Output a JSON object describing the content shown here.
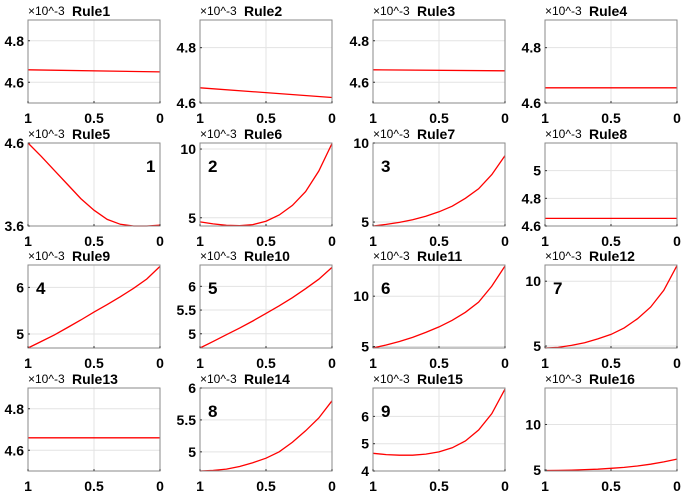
{
  "chart_data": [
    {
      "type": "line",
      "title": "Rule1",
      "exponent_label": "×10^-3",
      "xlim": [
        1,
        0
      ],
      "xticks": [
        1,
        0.5,
        0
      ],
      "xtick_labels": [
        "1",
        "0.5",
        "0"
      ],
      "ylim": [
        4.5,
        4.9
      ],
      "yticks": [
        4.6,
        4.8
      ],
      "ytick_labels": [
        "4.6",
        "4.8"
      ],
      "x": [
        1,
        0
      ],
      "y": [
        4.66,
        4.65
      ],
      "grid": true,
      "color": "#ff0000"
    },
    {
      "type": "line",
      "title": "Rule2",
      "exponent_label": "×10^-3",
      "xlim": [
        1,
        0
      ],
      "xticks": [
        1,
        0.5,
        0
      ],
      "xtick_labels": [
        "1",
        "0.5",
        "0"
      ],
      "ylim": [
        4.6,
        4.9
      ],
      "yticks": [
        4.6,
        4.8
      ],
      "ytick_labels": [
        "4.6",
        "4.8"
      ],
      "x": [
        1,
        0
      ],
      "y": [
        4.655,
        4.62
      ],
      "grid": true,
      "color": "#ff0000"
    },
    {
      "type": "line",
      "title": "Rule3",
      "exponent_label": "×10^-3",
      "xlim": [
        1,
        0
      ],
      "xticks": [
        1,
        0.5,
        0
      ],
      "xtick_labels": [
        "1",
        "0.5",
        "0"
      ],
      "ylim": [
        4.5,
        4.9
      ],
      "yticks": [
        4.6,
        4.8
      ],
      "ytick_labels": [
        "4.6",
        "4.8"
      ],
      "x": [
        1,
        0
      ],
      "y": [
        4.66,
        4.655
      ],
      "grid": true,
      "color": "#ff0000"
    },
    {
      "type": "line",
      "title": "Rule4",
      "exponent_label": "×10^-3",
      "xlim": [
        1,
        0
      ],
      "xticks": [
        1,
        0.5,
        0
      ],
      "xtick_labels": [
        "1",
        "0.5",
        "0"
      ],
      "ylim": [
        4.6,
        4.9
      ],
      "yticks": [
        4.6,
        4.8
      ],
      "ytick_labels": [
        "4.6",
        "4.8"
      ],
      "x": [
        1,
        0
      ],
      "y": [
        4.655,
        4.655
      ],
      "grid": true,
      "color": "#ff0000"
    },
    {
      "type": "line",
      "title": "Rule5",
      "exponent_label": "×10^-3",
      "annotation": "1",
      "annotation_pos": "top-right",
      "xlim": [
        1,
        0
      ],
      "xticks": [
        1,
        0.5,
        0
      ],
      "xtick_labels": [
        "1",
        "0.5",
        "0"
      ],
      "ylim": [
        3.6,
        4.6
      ],
      "yticks": [
        3.6,
        4.6
      ],
      "ytick_labels": [
        "3.6",
        "4.6"
      ],
      "x": [
        1,
        0.9,
        0.8,
        0.7,
        0.6,
        0.5,
        0.4,
        0.3,
        0.2,
        0.1,
        0
      ],
      "y": [
        4.6,
        4.44,
        4.27,
        4.1,
        3.93,
        3.79,
        3.68,
        3.62,
        3.6,
        3.6,
        3.61
      ],
      "grid": true,
      "color": "#ff0000"
    },
    {
      "type": "line",
      "title": "Rule6",
      "exponent_label": "×10^-3",
      "annotation": "2",
      "annotation_pos": "top-left",
      "xlim": [
        1,
        0
      ],
      "xticks": [
        1,
        0.5,
        0
      ],
      "xtick_labels": [
        "1",
        "0.5",
        "0"
      ],
      "ylim": [
        4.4,
        10.44
      ],
      "yticks": [
        5,
        10
      ],
      "ytick_labels": [
        "5",
        "10"
      ],
      "x": [
        1,
        0.9,
        0.8,
        0.7,
        0.6,
        0.5,
        0.4,
        0.3,
        0.2,
        0.1,
        0
      ],
      "y": [
        4.7,
        4.55,
        4.45,
        4.42,
        4.5,
        4.75,
        5.2,
        5.9,
        6.9,
        8.4,
        10.4
      ],
      "grid": true,
      "color": "#ff0000"
    },
    {
      "type": "line",
      "title": "Rule7",
      "exponent_label": "×10^-3",
      "annotation": "3",
      "annotation_pos": "top-left",
      "xlim": [
        1,
        0
      ],
      "xticks": [
        1,
        0.5,
        0
      ],
      "xtick_labels": [
        "1",
        "0.5",
        "0"
      ],
      "ylim": [
        4.75,
        10
      ],
      "yticks": [
        5,
        10
      ],
      "ytick_labels": [
        "5",
        "10"
      ],
      "x": [
        1,
        0.9,
        0.8,
        0.7,
        0.6,
        0.5,
        0.4,
        0.3,
        0.2,
        0.1,
        0
      ],
      "y": [
        4.75,
        4.85,
        4.98,
        5.15,
        5.37,
        5.65,
        6.0,
        6.5,
        7.1,
        8.0,
        9.2
      ],
      "grid": true,
      "color": "#ff0000"
    },
    {
      "type": "line",
      "title": "Rule8",
      "exponent_label": "×10^-3",
      "xlim": [
        1,
        0
      ],
      "xticks": [
        1,
        0.5,
        0
      ],
      "xtick_labels": [
        "1",
        "0.5",
        "0"
      ],
      "ylim": [
        4.6,
        5.2
      ],
      "yticks": [
        4.6,
        4.8,
        5
      ],
      "ytick_labels": [
        "4.6",
        "4.8",
        "5"
      ],
      "x": [
        1,
        0
      ],
      "y": [
        4.655,
        4.655
      ],
      "grid": true,
      "color": "#ff0000"
    },
    {
      "type": "line",
      "title": "Rule9",
      "exponent_label": "×10^-3",
      "annotation": "4",
      "annotation_pos": "top-left",
      "xlim": [
        1,
        0
      ],
      "xticks": [
        1,
        0.5,
        0
      ],
      "xtick_labels": [
        "1",
        "0.5",
        "0"
      ],
      "ylim": [
        4.7,
        6.48
      ],
      "yticks": [
        5,
        6
      ],
      "ytick_labels": [
        "5",
        "6"
      ],
      "x": [
        1,
        0.9,
        0.8,
        0.7,
        0.6,
        0.5,
        0.4,
        0.3,
        0.2,
        0.1,
        0
      ],
      "y": [
        4.7,
        4.84,
        4.98,
        5.14,
        5.3,
        5.47,
        5.63,
        5.8,
        5.98,
        6.18,
        6.45
      ],
      "grid": true,
      "color": "#ff0000"
    },
    {
      "type": "line",
      "title": "Rule10",
      "exponent_label": "×10^-3",
      "annotation": "5",
      "annotation_pos": "top-left",
      "xlim": [
        1,
        0
      ],
      "xticks": [
        1,
        0.5,
        0
      ],
      "xtick_labels": [
        "1",
        "0.5",
        "0"
      ],
      "ylim": [
        4.7,
        6.45
      ],
      "yticks": [
        5,
        5.5,
        6
      ],
      "ytick_labels": [
        "5",
        "5.5",
        "6"
      ],
      "x": [
        1,
        0.9,
        0.8,
        0.7,
        0.6,
        0.5,
        0.4,
        0.3,
        0.2,
        0.1,
        0
      ],
      "y": [
        4.7,
        4.84,
        4.98,
        5.12,
        5.27,
        5.43,
        5.59,
        5.76,
        5.95,
        6.15,
        6.4
      ],
      "grid": true,
      "color": "#ff0000"
    },
    {
      "type": "line",
      "title": "Rule11",
      "exponent_label": "×10^-3",
      "annotation": "6",
      "annotation_pos": "top-left",
      "xlim": [
        1,
        0
      ],
      "xticks": [
        1,
        0.5,
        0
      ],
      "xtick_labels": [
        "1",
        "0.5",
        "0"
      ],
      "ylim": [
        4.85,
        13.1
      ],
      "yticks": [
        5,
        10
      ],
      "ytick_labels": [
        "5",
        "10"
      ],
      "x": [
        1,
        0.9,
        0.8,
        0.7,
        0.6,
        0.5,
        0.4,
        0.3,
        0.2,
        0.1,
        0
      ],
      "y": [
        4.85,
        5.15,
        5.5,
        5.9,
        6.4,
        6.95,
        7.6,
        8.4,
        9.4,
        11,
        13
      ],
      "grid": true,
      "color": "#ff0000"
    },
    {
      "type": "line",
      "title": "Rule12",
      "exponent_label": "×10^-3",
      "annotation": "7",
      "annotation_pos": "top-left",
      "xlim": [
        1,
        0
      ],
      "xticks": [
        1,
        0.5,
        0
      ],
      "xtick_labels": [
        "1",
        "0.5",
        "0"
      ],
      "ylim": [
        4.85,
        11.25
      ],
      "yticks": [
        5,
        10
      ],
      "ytick_labels": [
        "5",
        "10"
      ],
      "x": [
        1,
        0.9,
        0.8,
        0.7,
        0.6,
        0.5,
        0.4,
        0.3,
        0.2,
        0.1,
        0
      ],
      "y": [
        4.85,
        4.9,
        5.05,
        5.25,
        5.55,
        5.9,
        6.4,
        7.1,
        8.0,
        9.3,
        11.2
      ],
      "grid": true,
      "color": "#ff0000"
    },
    {
      "type": "line",
      "title": "Rule13",
      "exponent_label": "×10^-3",
      "xlim": [
        1,
        0
      ],
      "xticks": [
        1,
        0.5,
        0
      ],
      "xtick_labels": [
        "1",
        "0.5",
        "0"
      ],
      "ylim": [
        4.5,
        4.9
      ],
      "yticks": [
        4.6,
        4.8
      ],
      "ytick_labels": [
        "4.6",
        "4.8"
      ],
      "x": [
        1,
        0
      ],
      "y": [
        4.66,
        4.66
      ],
      "grid": true,
      "color": "#ff0000"
    },
    {
      "type": "line",
      "title": "Rule14",
      "exponent_label": "×10^-3",
      "annotation": "8",
      "annotation_pos": "top-left",
      "xlim": [
        1,
        0
      ],
      "xticks": [
        1,
        0.5,
        0
      ],
      "xtick_labels": [
        "1",
        "0.5",
        "0"
      ],
      "ylim": [
        4.7,
        6
      ],
      "yticks": [
        5,
        5.5,
        6
      ],
      "ytick_labels": [
        "5",
        "5.5",
        "6"
      ],
      "x": [
        1,
        0.9,
        0.8,
        0.7,
        0.6,
        0.5,
        0.4,
        0.3,
        0.2,
        0.1,
        0
      ],
      "y": [
        4.7,
        4.71,
        4.73,
        4.77,
        4.83,
        4.9,
        5.0,
        5.15,
        5.33,
        5.53,
        5.8
      ],
      "grid": true,
      "color": "#ff0000"
    },
    {
      "type": "line",
      "title": "Rule15",
      "exponent_label": "×10^-3",
      "annotation": "9",
      "annotation_pos": "top-left",
      "xlim": [
        1,
        0
      ],
      "xticks": [
        1,
        0.5,
        0
      ],
      "xtick_labels": [
        "1",
        "0.5",
        "0"
      ],
      "ylim": [
        4,
        7.04
      ],
      "yticks": [
        4,
        5,
        6
      ],
      "ytick_labels": [
        "4",
        "5",
        "6"
      ],
      "x": [
        1,
        0.9,
        0.8,
        0.7,
        0.6,
        0.5,
        0.4,
        0.3,
        0.2,
        0.1,
        0
      ],
      "y": [
        4.65,
        4.6,
        4.58,
        4.58,
        4.62,
        4.7,
        4.85,
        5.1,
        5.5,
        6.1,
        7.0
      ],
      "grid": true,
      "color": "#ff0000"
    },
    {
      "type": "line",
      "title": "Rule16",
      "exponent_label": "×10^-3",
      "xlim": [
        1,
        0
      ],
      "xticks": [
        1,
        0.5,
        0
      ],
      "xtick_labels": [
        "1",
        "0.5",
        "0"
      ],
      "ylim": [
        4.9,
        14
      ],
      "yticks": [
        5,
        10
      ],
      "ytick_labels": [
        "5",
        "10"
      ],
      "x": [
        1,
        0.9,
        0.8,
        0.7,
        0.6,
        0.5,
        0.4,
        0.3,
        0.2,
        0.1,
        0
      ],
      "y": [
        4.95,
        4.97,
        5.0,
        5.05,
        5.1,
        5.2,
        5.3,
        5.45,
        5.65,
        5.9,
        6.2
      ],
      "grid": true,
      "color": "#ff0000"
    }
  ]
}
